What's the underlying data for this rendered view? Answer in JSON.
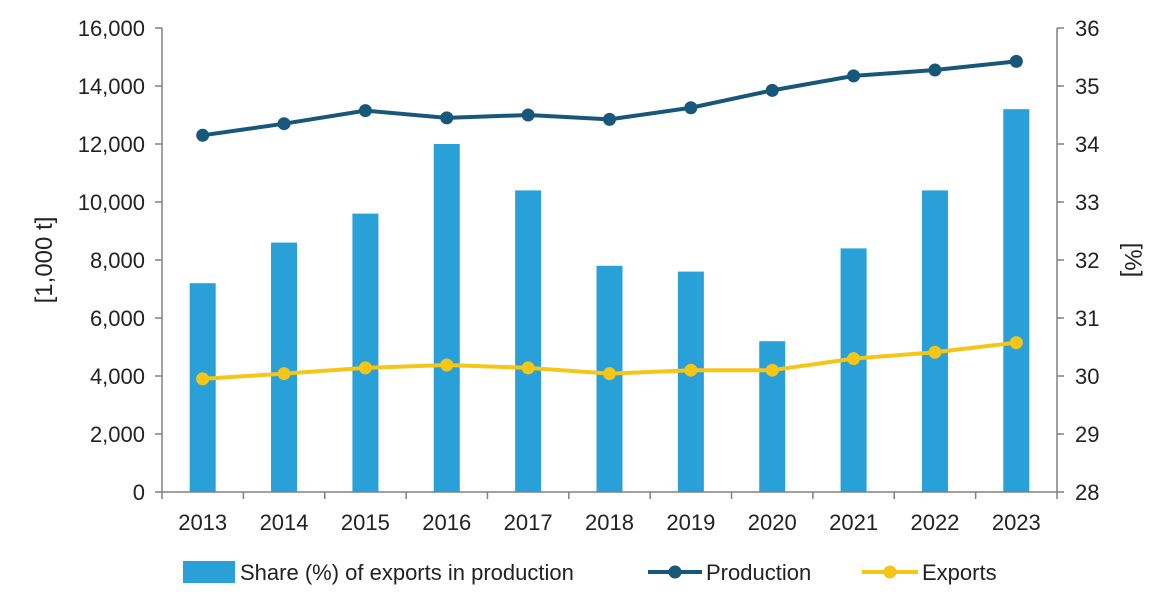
{
  "chart_data": {
    "type": "bar",
    "categories": [
      "2013",
      "2014",
      "2015",
      "2016",
      "2017",
      "2018",
      "2019",
      "2020",
      "2021",
      "2022",
      "2023"
    ],
    "series": [
      {
        "name": "Share (%) of exports in production",
        "type": "bar",
        "axis": "right",
        "values": [
          31.6,
          32.3,
          32.8,
          34.0,
          33.2,
          31.9,
          31.8,
          30.6,
          32.2,
          33.2,
          34.6
        ]
      },
      {
        "name": "Production",
        "type": "line",
        "axis": "left",
        "values": [
          12300,
          12700,
          13150,
          12900,
          13000,
          12850,
          13250,
          13850,
          14350,
          14550,
          14850
        ]
      },
      {
        "name": "Exports",
        "type": "line",
        "axis": "left",
        "values": [
          3900,
          4080,
          4280,
          4380,
          4280,
          4080,
          4200,
          4200,
          4600,
          4820,
          5150
        ]
      }
    ],
    "ylabel": "[1,000 t]",
    "y2label": "[%]",
    "ylim": [
      0,
      16000
    ],
    "y2lim": [
      28,
      36
    ],
    "yticks": [
      "0",
      "2,000",
      "4,000",
      "6,000",
      "8,000",
      "10,000",
      "12,000",
      "14,000",
      "16,000"
    ],
    "y2ticks": [
      "28",
      "29",
      "30",
      "31",
      "32",
      "33",
      "34",
      "35",
      "36"
    ],
    "grid": false,
    "legend_position": "bottom",
    "colors": {
      "bar": "#2aa0d8",
      "production": "#17587a",
      "exports": "#f5c518",
      "axis": "#808080"
    }
  }
}
